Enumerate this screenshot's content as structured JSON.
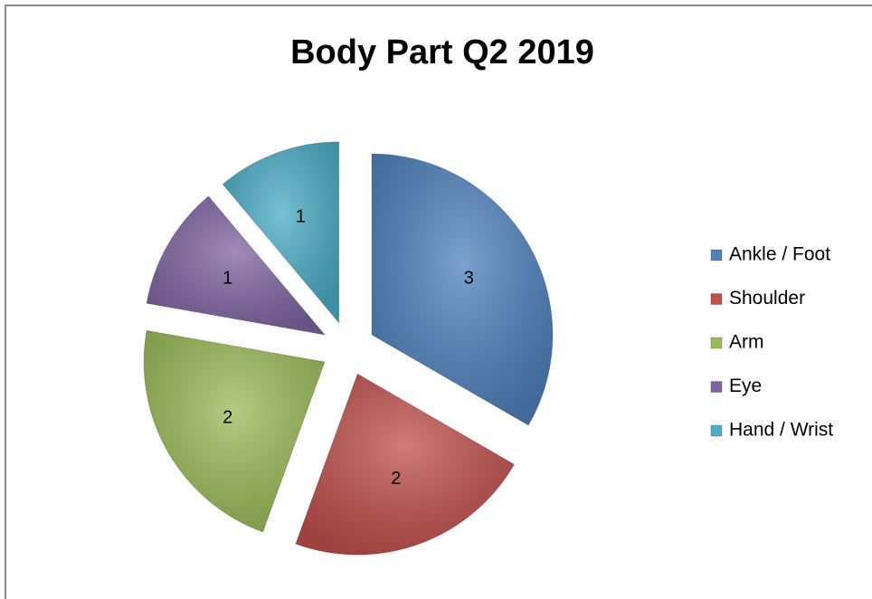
{
  "chart_data": {
    "type": "pie",
    "title": "Body Part Q2 2019",
    "categories": [
      "Ankle / Foot",
      "Shoulder",
      "Arm",
      "Eye",
      "Hand / Wrist"
    ],
    "values": [
      3,
      2,
      2,
      1,
      1
    ],
    "colors": [
      "#4f81bd",
      "#c0504d",
      "#9bbb59",
      "#8064a2",
      "#4bacc6"
    ],
    "exploded": true,
    "legend": "right"
  }
}
